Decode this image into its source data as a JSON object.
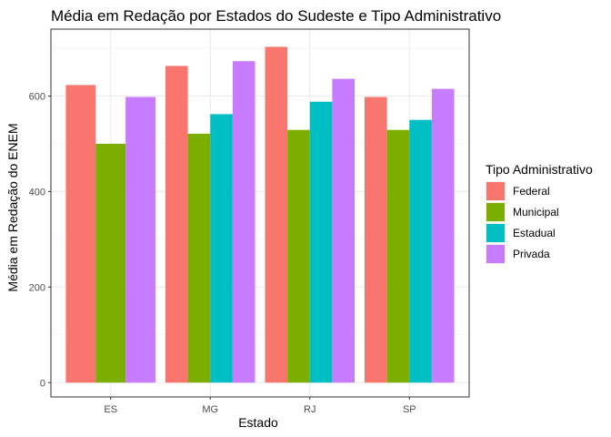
{
  "chart_data": {
    "type": "bar",
    "title": "Média em Redação por Estados do Sudeste e Tipo Administrativo",
    "xlabel": "Estado",
    "ylabel": "Média em Redação do ENEM",
    "categories": [
      "ES",
      "MG",
      "RJ",
      "SP"
    ],
    "y_ticks": [
      0,
      200,
      400,
      600
    ],
    "ylim": [
      -30,
      740
    ],
    "grid": true,
    "legend": {
      "title": "Tipo Administrativo",
      "placement": "right"
    },
    "series": [
      {
        "name": "Federal",
        "color": "#F8766D",
        "values": [
          623,
          663,
          703,
          598
        ]
      },
      {
        "name": "Municipal",
        "color": "#7CAE00",
        "values": [
          500,
          521,
          529,
          529
        ]
      },
      {
        "name": "Estadual",
        "color": "#00BFC4",
        "values": [
          null,
          562,
          588,
          550
        ]
      },
      {
        "name": "Privada",
        "color": "#C77CFF",
        "values": [
          598,
          673,
          636,
          615
        ]
      }
    ]
  }
}
